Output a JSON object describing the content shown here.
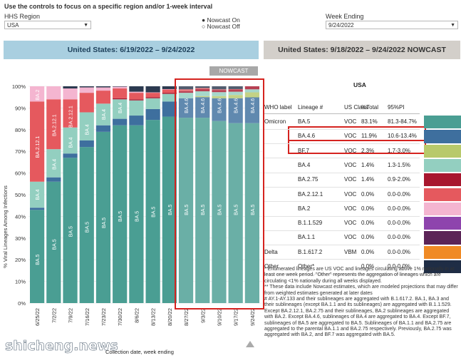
{
  "controls": {
    "instruction": "Use the controls to focus on a specific region and/or 1-week interval",
    "region_label": "HHS Region",
    "region_value": "USA",
    "nowcast_on": "Nowcast On",
    "nowcast_off": "Nowcast Off",
    "week_label": "Week Ending",
    "week_value": "9/24/2022"
  },
  "headers": {
    "left": "United States: 6/19/2022 – 9/24/2022",
    "right": "United States: 9/18/2022 – 9/24/2022 NOWCAST",
    "nowcast_tab": "NOWCAST"
  },
  "chart_data": {
    "type": "bar",
    "ylabel": "% Viral Lineages Among Infections",
    "xlabel": "Collection date, week ending",
    "ylim": [
      0,
      100
    ],
    "yticks": [
      "0%",
      "10%",
      "20%",
      "30%",
      "40%",
      "50%",
      "60%",
      "70%",
      "80%",
      "90%",
      "100%"
    ],
    "categories": [
      "6/25/22",
      "7/2/22",
      "7/9/22",
      "7/16/22",
      "7/23/22",
      "7/30/22",
      "8/6/22",
      "8/13/22",
      "8/20/22",
      "8/27/22",
      "9/3/22",
      "9/10/22",
      "9/17/22",
      "9/24/22"
    ],
    "series": [
      {
        "name": "BA.5",
        "color": "#4a9e93",
        "values": [
          43,
          56,
          67,
          72,
          79,
          82,
          82,
          84.5,
          86,
          85.5,
          85.5,
          84,
          83,
          83
        ]
      },
      {
        "name": "BA.4.6",
        "color": "#3e6f9e",
        "values": [
          1,
          2,
          2,
          3,
          3,
          3,
          4.5,
          5,
          7,
          9,
          9.5,
          10.5,
          11.5,
          11.9
        ]
      },
      {
        "name": "BF.7",
        "color": "#b8c96b",
        "values": [
          0,
          0,
          0,
          0,
          0,
          0,
          0,
          0,
          0,
          0,
          0.5,
          1,
          1.5,
          2.3
        ]
      },
      {
        "name": "BA.4",
        "color": "#93cfc0",
        "values": [
          12,
          13,
          12,
          13,
          10,
          9,
          7,
          5,
          3.5,
          2.5,
          2.2,
          1.8,
          1.5,
          1.4
        ]
      },
      {
        "name": "BA.2.75",
        "color": "#a8172e",
        "values": [
          0,
          0,
          0,
          0,
          0,
          0.5,
          0.5,
          0.5,
          0.5,
          0.8,
          1,
          1,
          1,
          1.4
        ]
      },
      {
        "name": "BA.2.12.1",
        "color": "#e5595e",
        "values": [
          37,
          23,
          13,
          9,
          6,
          4.5,
          3,
          2,
          1.5,
          0.8,
          0.5,
          0.3,
          0.2,
          0
        ]
      },
      {
        "name": "BA.2",
        "color": "#f4b5d0",
        "values": [
          7,
          6,
          5,
          2.5,
          1.5,
          0.8,
          0.5,
          0.2,
          0.2,
          0,
          0,
          0,
          0,
          0
        ]
      },
      {
        "name": "Other",
        "color": "#2c3a50",
        "values": [
          0,
          0,
          1,
          0.5,
          0.5,
          0.2,
          2.5,
          2.8,
          1.3,
          1.4,
          0.8,
          1.4,
          1.3,
          0
        ]
      }
    ],
    "bar_labels": [
      [
        [
          "BA.5",
          0.2
        ],
        [
          "BA.4",
          0.5
        ],
        [
          "BA.2.12.1",
          0.72
        ],
        [
          "BA.2",
          0.96
        ]
      ],
      [
        [
          "BA.5",
          0.27
        ],
        [
          "BA.4",
          0.64
        ],
        [
          "BA.2.12.1",
          0.82
        ]
      ],
      [
        [
          "BA.5",
          0.33
        ],
        [
          "BA.4",
          0.74
        ],
        [
          "BA.2.12.1",
          0.86
        ]
      ],
      [
        [
          "BA.5",
          0.35
        ],
        [
          "BA.4",
          0.8
        ]
      ],
      [
        [
          "BA.5",
          0.37
        ],
        [
          "BA.4",
          0.87
        ]
      ],
      [
        [
          "BA.5",
          0.4
        ],
        [
          "BA.4",
          0.9
        ]
      ],
      [
        [
          "BA.5",
          0.4
        ]
      ],
      [
        [
          "BA.5",
          0.42
        ]
      ],
      [
        [
          "BA.5",
          0.43
        ]
      ],
      [
        [
          "BA.5",
          0.43
        ],
        [
          "BA.4.6",
          0.91
        ]
      ],
      [
        [
          "BA.5",
          0.43
        ],
        [
          "BA.4.6",
          0.91
        ]
      ],
      [
        [
          "BA.5",
          0.43
        ],
        [
          "BA.4.6",
          0.91
        ]
      ],
      [
        [
          "BA.5",
          0.43
        ],
        [
          "BA.4.6",
          0.91
        ]
      ],
      [
        [
          "BA.5",
          0.43
        ],
        [
          "BA.4.6",
          0.91
        ]
      ]
    ]
  },
  "table": {
    "region": "USA",
    "columns": [
      "WHO label",
      "Lineage #",
      "US Class",
      "%Total",
      "95%PI"
    ],
    "rows": [
      {
        "who": "Omicron",
        "lineage": "BA.5",
        "cls": "VOC",
        "total": "83.1%",
        "pi": "81.3-84.7%",
        "color": "#4a9e93"
      },
      {
        "who": "",
        "lineage": "BA.4.6",
        "cls": "VOC",
        "total": "11.9%",
        "pi": "10.6-13.4%",
        "color": "#3e6f9e"
      },
      {
        "who": "",
        "lineage": "BF.7",
        "cls": "VOC",
        "total": "2.3%",
        "pi": "1.7-3.0%",
        "color": "#b8c96b"
      },
      {
        "who": "",
        "lineage": "BA.4",
        "cls": "VOC",
        "total": "1.4%",
        "pi": "1.3-1.5%",
        "color": "#93cfc0"
      },
      {
        "who": "",
        "lineage": "BA.2.75",
        "cls": "VOC",
        "total": "1.4%",
        "pi": "0.9-2.0%",
        "color": "#a8172e"
      },
      {
        "who": "",
        "lineage": "BA.2.12.1",
        "cls": "VOC",
        "total": "0.0%",
        "pi": "0.0-0.0%",
        "color": "#e5595e"
      },
      {
        "who": "",
        "lineage": "BA.2",
        "cls": "VOC",
        "total": "0.0%",
        "pi": "0.0-0.0%",
        "color": "#f4b5d0"
      },
      {
        "who": "",
        "lineage": "B.1.1.529",
        "cls": "VOC",
        "total": "0.0%",
        "pi": "0.0-0.0%",
        "color": "#8e44ad"
      },
      {
        "who": "",
        "lineage": "BA.1.1",
        "cls": "VOC",
        "total": "0.0%",
        "pi": "0.0-0.0%",
        "color": "#5b2457"
      },
      {
        "who": "Delta",
        "lineage": "B.1.617.2",
        "cls": "VBM",
        "total": "0.0%",
        "pi": "0.0-0.0%",
        "color": "#f08a24"
      },
      {
        "who": "Other",
        "lineage": "Other*",
        "cls": "",
        "total": "0.0%",
        "pi": "0.0-0.0%",
        "color": "#1f2d45"
      }
    ]
  },
  "footnotes": [
    "*     Enumerated lineages are US VOC and lineages circulating above 1% nationally in at least one week period. \"Other\" represents the aggregation of lineages which are circulating <1% nationally during all weeks displayed.",
    "**    These data include Nowcast estimates, which are modeled projections that may differ from weighted estimates generated at later dates",
    "#     AY.1-AY.133 and their sublineages are aggregated with B.1.617.2. BA.1, BA.3 and their sublineages (except BA.1.1 and its sublineages) are aggregated with B.1.1.529. Except BA.2.12.1, BA.2.75 and their sublineages, BA.2 sublineages are aggregated with BA.2. Except BA.4.6, sublineages of BA.4 are aggregated to BA.4. Except BF.7, sublineages of BA.5 are aggregated to BA.5. Sublineages of BA.1.1 and BA.2.75 are aggregated to the parental BA.1.1 and BA.2.75 respectively. Previously, BA.2.75 was aggregated with BA.2, and BF.7 was aggregated with BA.5."
  ],
  "watermark": "shicheng.news"
}
